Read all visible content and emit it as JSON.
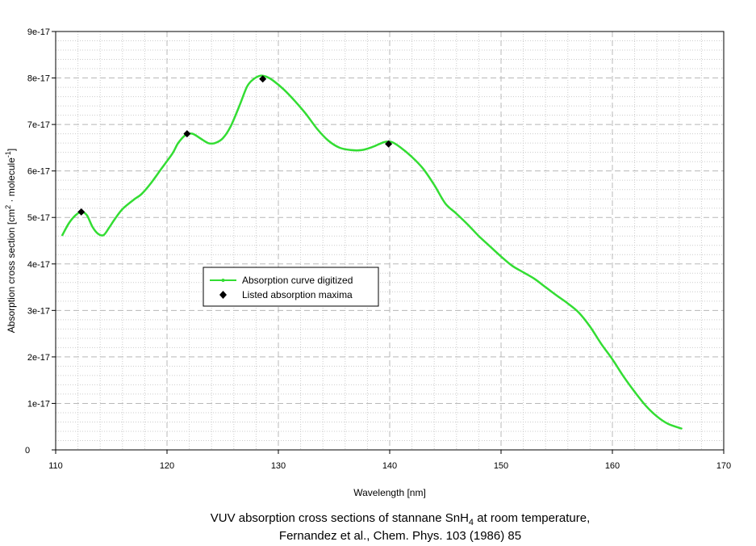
{
  "chart_data": {
    "type": "line",
    "xlabel": "Wavelength [nm]",
    "ylabel": {
      "main": "Absorption cross section [cm",
      "sup1": "2",
      "mid": " · molecule",
      "sup2": "-1",
      "end": "]"
    },
    "xlim": [
      110,
      170
    ],
    "ylim": [
      0,
      9e-17
    ],
    "x_ticks": [
      110,
      120,
      130,
      140,
      150,
      160,
      170
    ],
    "x_tick_labels": [
      "110",
      "120",
      "130",
      "140",
      "150",
      "160",
      "170"
    ],
    "y_ticks": [
      0,
      1e-17,
      2e-17,
      3e-17,
      4e-17,
      5e-17,
      6e-17,
      7e-17,
      8e-17,
      9e-17
    ],
    "y_tick_labels": [
      "0",
      "1e-17",
      "2e-17",
      "3e-17",
      "4e-17",
      "5e-17",
      "6e-17",
      "7e-17",
      "8e-17",
      "9e-17"
    ],
    "grid": true,
    "legend_position": "center-left",
    "series": [
      {
        "name": "Absorption curve digitized",
        "style": "line",
        "color": "#33dd33",
        "x": [
          110.6,
          111.2,
          111.8,
          112.3,
          112.8,
          113.3,
          113.8,
          114.3,
          114.8,
          115.3,
          116.0,
          117.0,
          117.7,
          118.5,
          119.5,
          120.5,
          121.0,
          121.7,
          122.3,
          123.0,
          123.7,
          124.3,
          125.0,
          125.7,
          126.5,
          127.2,
          127.8,
          128.4,
          128.9,
          129.5,
          130.5,
          131.5,
          132.5,
          133.5,
          134.5,
          135.5,
          136.5,
          137.5,
          138.5,
          139.5,
          140.2,
          141.0,
          142.0,
          143.0,
          144.0,
          145.0,
          146.0,
          147.0,
          148.0,
          149.0,
          150.0,
          151.0,
          152.0,
          153.0,
          154.0,
          155.0,
          156.0,
          157.0,
          158.0,
          159.0,
          160.0,
          161.0,
          162.0,
          163.0,
          164.0,
          165.0,
          166.2
        ],
        "y": [
          4.62e-17,
          4.88e-17,
          5.05e-17,
          5.12e-17,
          5.05e-17,
          4.8e-17,
          4.65e-17,
          4.62e-17,
          4.78e-17,
          4.96e-17,
          5.18e-17,
          5.38e-17,
          5.5e-17,
          5.72e-17,
          6.05e-17,
          6.38e-17,
          6.6e-17,
          6.78e-17,
          6.8e-17,
          6.7e-17,
          6.6e-17,
          6.6e-17,
          6.7e-17,
          6.95e-17,
          7.4e-17,
          7.82e-17,
          7.98e-17,
          8.05e-17,
          8.03e-17,
          7.95e-17,
          7.75e-17,
          7.5e-17,
          7.22e-17,
          6.9e-17,
          6.65e-17,
          6.5e-17,
          6.45e-17,
          6.45e-17,
          6.52e-17,
          6.62e-17,
          6.62e-17,
          6.5e-17,
          6.3e-17,
          6.05e-17,
          5.7e-17,
          5.3e-17,
          5.08e-17,
          4.85e-17,
          4.6e-17,
          4.38e-17,
          4.16e-17,
          3.96e-17,
          3.82e-17,
          3.68e-17,
          3.5e-17,
          3.32e-17,
          3.15e-17,
          2.95e-17,
          2.65e-17,
          2.28e-17,
          1.95e-17,
          1.58e-17,
          1.25e-17,
          9.5e-18,
          7.2e-18,
          5.6e-18,
          4.6e-18
        ]
      },
      {
        "name": "Listed absorption maxima",
        "style": "markers",
        "marker": "diamond",
        "color": "#000000",
        "x": [
          112.3,
          121.8,
          128.6,
          139.9
        ],
        "y": [
          5.12e-17,
          6.8e-17,
          7.98e-17,
          6.58e-17
        ]
      }
    ]
  },
  "caption": {
    "line1_pre": "VUV absorption cross sections of stannane SnH",
    "line1_sub": "4",
    "line1_post": " at room temperature,",
    "line2": "Fernandez et al., Chem. Phys. 103 (1986) 85"
  }
}
